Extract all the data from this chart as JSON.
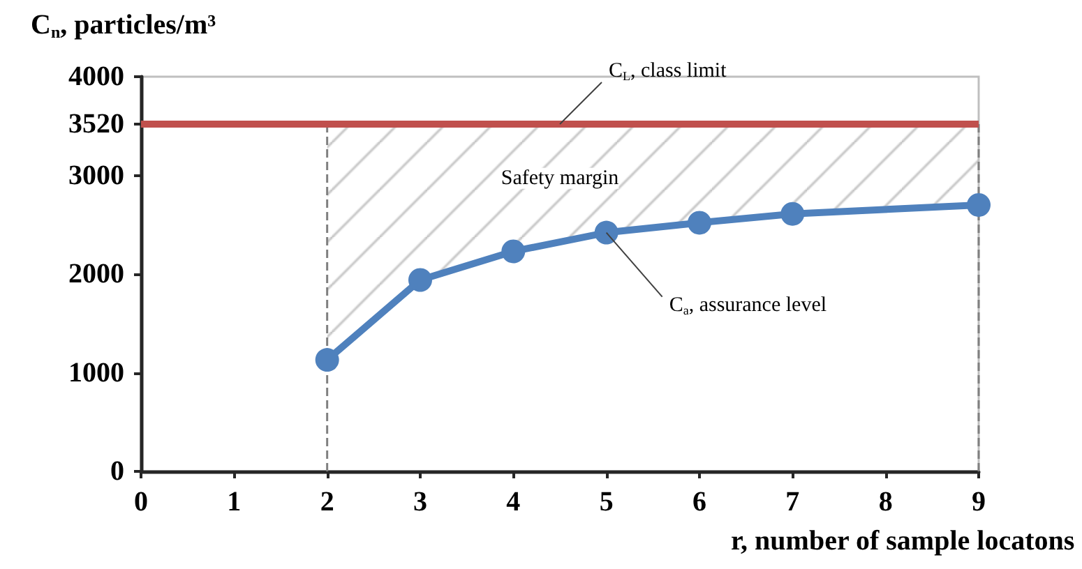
{
  "chart_data": {
    "type": "line",
    "ylabel": "C$_{n}$, particles/m³",
    "xlabel": "r, number of sample locatons",
    "x": [
      2,
      3,
      4,
      5,
      6,
      7,
      9
    ],
    "series": [
      {
        "color": "#4f81bd",
        "values": [
          1130,
          1940,
          2230,
          2420,
          2520,
          2610,
          2700
        ],
        "lower": [
          1130,
          1940,
          2230,
          2420,
          2520,
          2610,
          2700
        ],
        "upper": [
          3520,
          3520,
          3520,
          3520,
          3520,
          3520,
          3520
        ]
      }
    ],
    "xlim": [
      0,
      9
    ],
    "xticks": [
      0,
      1,
      2,
      3,
      4,
      5,
      6,
      7,
      8,
      9
    ],
    "ylim": [
      0,
      4000
    ],
    "yticks": [
      0,
      1000,
      2000,
      3000,
      3520,
      4000
    ],
    "grid": false,
    "marker": "circle",
    "line_style": "solid",
    "ref_lines": [
      {
        "axis": "y",
        "value": 3520,
        "color": "#c0504d",
        "line_style": "solid"
      },
      {
        "axis": "x",
        "value": 2,
        "color": "#808080",
        "line_style": "dashed"
      },
      {
        "axis": "x",
        "value": 9,
        "color": "#808080",
        "line_style": "dashed"
      }
    ],
    "annotations": [
      {
        "text": "C$_{L}$, class limit",
        "x": 4.5,
        "y": 3520
      },
      {
        "text": "C$_{a}$, assurance level",
        "x": 5,
        "y": 2420
      },
      "Safety margin"
    ]
  }
}
